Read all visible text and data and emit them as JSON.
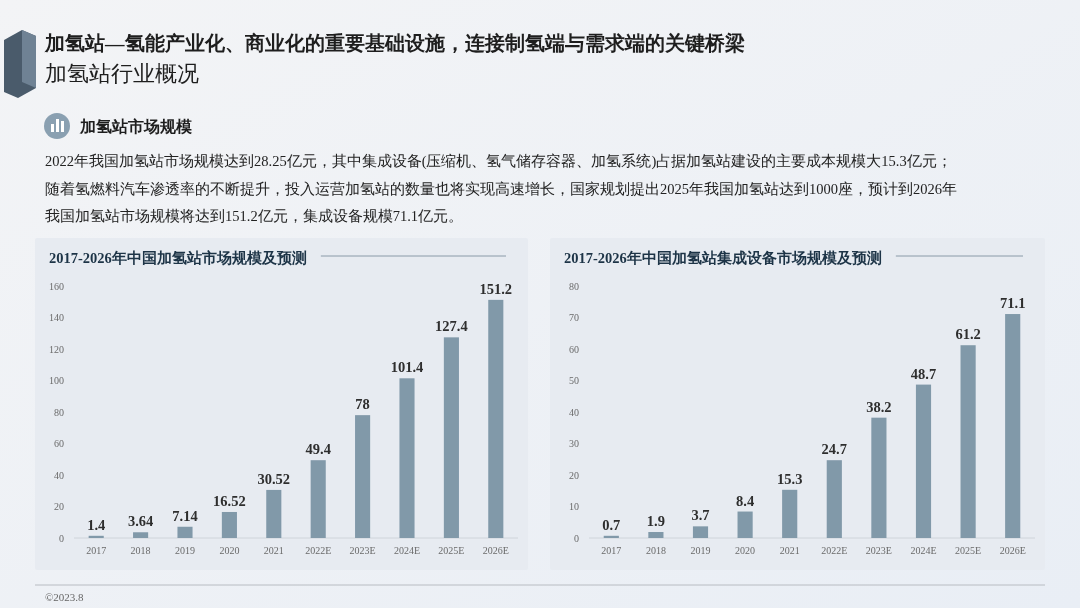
{
  "chart_data": [
    {
      "type": "other",
      "title": "加氢站—氢能产业化、商业化的重要基础设施，连接制氢端与需求端的关键桥梁",
      "subtitle": "加氢站行业概况",
      "annotations": [
        "加氢站市场规模",
        "2022年我国加氢站市场规模达到28.25亿元，其中集成设备(压缩机、氢气储存容器、加氢系统)占据加氢站建设的主要成本规模大15.3亿元；",
        "随着氢燃料汽车渗透率的不断提升，投入运营加氢站的数量也将实现高速增长，国家规划提出2025年我国加氢站达到1000座，预计到2026年",
        "我国加氢站市场规模将达到151.2亿元，集成设备规模71.1亿元。",
        "©2023.8"
      ]
    },
    {
      "type": "bar",
      "title": "2017-2026年中国加氢站市场规模及预测",
      "categories": [
        "2017",
        "2018",
        "2019",
        "2020",
        "2021",
        "2022E",
        "2023E",
        "2024E",
        "2025E",
        "2026E"
      ],
      "values": [
        1.4,
        3.64,
        7.14,
        16.52,
        30.52,
        49.4,
        78,
        101.4,
        127.4,
        151.2
      ],
      "color": "#8199a9",
      "ylim": [
        0,
        160
      ],
      "yticks": [
        0,
        20,
        40,
        60,
        80,
        100,
        120,
        140,
        160
      ],
      "data_labels": true
    },
    {
      "type": "bar",
      "title": "2017-2026年中国加氢站集成设备市场规模及预测",
      "categories": [
        "2017",
        "2018",
        "2019",
        "2020",
        "2021",
        "2022E",
        "2023E",
        "2024E",
        "2025E",
        "2026E"
      ],
      "values": [
        0.7,
        1.9,
        3.7,
        8.4,
        15.3,
        24.7,
        38.2,
        48.7,
        61.2,
        71.1
      ],
      "color": "#8199a9",
      "ylim": [
        0,
        80
      ],
      "yticks": [
        0,
        10,
        20,
        30,
        40,
        50,
        60,
        70,
        80
      ],
      "data_labels": true
    }
  ]
}
